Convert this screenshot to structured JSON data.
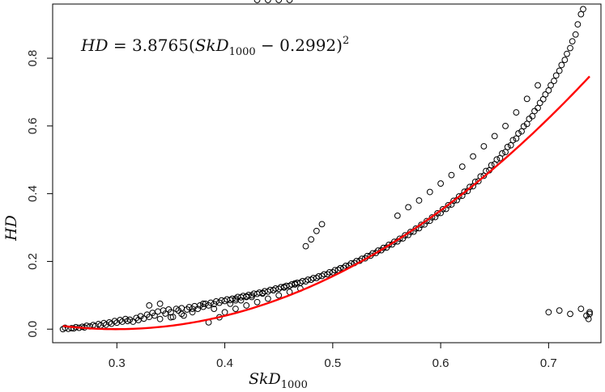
{
  "chart_data": {
    "type": "scatter",
    "title": "",
    "annotation": {
      "lhs": "HD",
      "eq": " = 3.8765(",
      "var": "SkD",
      "sub": "1000",
      "tail": " − 0.2992)",
      "sup": "2"
    },
    "xlabel": {
      "main": "SkD",
      "sub": "1000"
    },
    "ylabel": "HD",
    "xlim": [
      0.2405,
      0.7485
    ],
    "ylim": [
      -0.04,
      0.96
    ],
    "xticks": [
      0.3,
      0.4,
      0.5,
      0.6,
      0.7
    ],
    "xtick_labels": [
      "0.3",
      "0.4",
      "0.5",
      "0.6",
      "0.7"
    ],
    "yticks": [
      0.0,
      0.2,
      0.4,
      0.6,
      0.8
    ],
    "ytick_labels": [
      "0.0",
      "0.2",
      "0.4",
      "0.6",
      "0.8"
    ],
    "grid": false,
    "colors": {
      "points": "#000000",
      "fit": "#ff0000",
      "frame": "#000000"
    },
    "fit": {
      "coef": 3.8765,
      "offset": 0.2992,
      "power": 2,
      "x_range": [
        0.25,
        0.738
      ]
    },
    "points_x": [
      0.25,
      0.252,
      0.255,
      0.258,
      0.26,
      0.262,
      0.265,
      0.268,
      0.27,
      0.272,
      0.275,
      0.278,
      0.28,
      0.283,
      0.285,
      0.288,
      0.29,
      0.293,
      0.295,
      0.298,
      0.3,
      0.303,
      0.305,
      0.308,
      0.31,
      0.312,
      0.315,
      0.318,
      0.32,
      0.322,
      0.325,
      0.328,
      0.33,
      0.333,
      0.335,
      0.338,
      0.34,
      0.343,
      0.345,
      0.348,
      0.35,
      0.352,
      0.355,
      0.357,
      0.36,
      0.362,
      0.365,
      0.367,
      0.37,
      0.372,
      0.375,
      0.377,
      0.38,
      0.382,
      0.385,
      0.387,
      0.39,
      0.392,
      0.395,
      0.397,
      0.4,
      0.402,
      0.405,
      0.407,
      0.41,
      0.412,
      0.415,
      0.417,
      0.42,
      0.422,
      0.425,
      0.427,
      0.43,
      0.432,
      0.435,
      0.437,
      0.44,
      0.442,
      0.445,
      0.447,
      0.45,
      0.452,
      0.455,
      0.457,
      0.46,
      0.462,
      0.465,
      0.467,
      0.47,
      0.472,
      0.475,
      0.477,
      0.48,
      0.482,
      0.485,
      0.487,
      0.49,
      0.492,
      0.495,
      0.497,
      0.5,
      0.502,
      0.505,
      0.507,
      0.51,
      0.512,
      0.515,
      0.517,
      0.52,
      0.522,
      0.525,
      0.527,
      0.53,
      0.532,
      0.535,
      0.537,
      0.54,
      0.542,
      0.545,
      0.547,
      0.55,
      0.552,
      0.555,
      0.557,
      0.56,
      0.562,
      0.565,
      0.567,
      0.57,
      0.572,
      0.575,
      0.577,
      0.58,
      0.582,
      0.585,
      0.587,
      0.59,
      0.592,
      0.595,
      0.597,
      0.6,
      0.602,
      0.605,
      0.607,
      0.61,
      0.612,
      0.615,
      0.617,
      0.62,
      0.622,
      0.625,
      0.627,
      0.63,
      0.632,
      0.635,
      0.637,
      0.64,
      0.642,
      0.645,
      0.647,
      0.65,
      0.652,
      0.655,
      0.657,
      0.66,
      0.662,
      0.665,
      0.667,
      0.67,
      0.672,
      0.675,
      0.677,
      0.68,
      0.682,
      0.685,
      0.687,
      0.69,
      0.692,
      0.695,
      0.697,
      0.7,
      0.702,
      0.705,
      0.707,
      0.71,
      0.712,
      0.715,
      0.717,
      0.72,
      0.722,
      0.725,
      0.727,
      0.73,
      0.732,
      0.735,
      0.737,
      0.738,
      0.738,
      0.385,
      0.39,
      0.395,
      0.4,
      0.405,
      0.41,
      0.415,
      0.42,
      0.425,
      0.43,
      0.435,
      0.44,
      0.445,
      0.45,
      0.455,
      0.46,
      0.465,
      0.47,
      0.475,
      0.48,
      0.485,
      0.49,
      0.56,
      0.57,
      0.58,
      0.59,
      0.6,
      0.61,
      0.62,
      0.63,
      0.64,
      0.65,
      0.66,
      0.67,
      0.68,
      0.69,
      0.7,
      0.71,
      0.72,
      0.73,
      0.33,
      0.34,
      0.35,
      0.36,
      0.37,
      0.38,
      0.41,
      0.42,
      0.43,
      0.44,
      0.45,
      0.46
    ],
    "points_y": [
      0.0,
      0.004,
      0.001,
      0.003,
      0.002,
      0.006,
      0.004,
      0.007,
      0.005,
      0.01,
      0.008,
      0.012,
      0.009,
      0.015,
      0.011,
      0.018,
      0.013,
      0.02,
      0.016,
      0.024,
      0.019,
      0.027,
      0.022,
      0.03,
      0.024,
      0.028,
      0.022,
      0.033,
      0.027,
      0.038,
      0.031,
      0.043,
      0.036,
      0.048,
      0.04,
      0.052,
      0.03,
      0.055,
      0.046,
      0.058,
      0.05,
      0.036,
      0.06,
      0.055,
      0.062,
      0.04,
      0.058,
      0.065,
      0.05,
      0.068,
      0.06,
      0.07,
      0.066,
      0.075,
      0.07,
      0.078,
      0.074,
      0.082,
      0.078,
      0.085,
      0.083,
      0.088,
      0.086,
      0.09,
      0.09,
      0.095,
      0.094,
      0.098,
      0.097,
      0.101,
      0.1,
      0.105,
      0.104,
      0.108,
      0.107,
      0.112,
      0.111,
      0.116,
      0.115,
      0.12,
      0.119,
      0.124,
      0.123,
      0.128,
      0.128,
      0.132,
      0.132,
      0.137,
      0.137,
      0.142,
      0.141,
      0.146,
      0.146,
      0.151,
      0.151,
      0.156,
      0.157,
      0.162,
      0.162,
      0.168,
      0.168,
      0.174,
      0.175,
      0.18,
      0.181,
      0.187,
      0.188,
      0.194,
      0.195,
      0.201,
      0.202,
      0.208,
      0.209,
      0.216,
      0.217,
      0.224,
      0.225,
      0.232,
      0.233,
      0.24,
      0.241,
      0.249,
      0.25,
      0.258,
      0.259,
      0.267,
      0.268,
      0.277,
      0.278,
      0.287,
      0.288,
      0.297,
      0.298,
      0.308,
      0.309,
      0.319,
      0.32,
      0.33,
      0.331,
      0.342,
      0.343,
      0.354,
      0.355,
      0.366,
      0.368,
      0.379,
      0.381,
      0.392,
      0.394,
      0.406,
      0.408,
      0.42,
      0.422,
      0.435,
      0.437,
      0.451,
      0.453,
      0.467,
      0.469,
      0.484,
      0.487,
      0.501,
      0.505,
      0.519,
      0.523,
      0.538,
      0.543,
      0.558,
      0.563,
      0.578,
      0.584,
      0.599,
      0.606,
      0.621,
      0.629,
      0.644,
      0.653,
      0.668,
      0.679,
      0.693,
      0.705,
      0.72,
      0.733,
      0.749,
      0.763,
      0.78,
      0.795,
      0.813,
      0.83,
      0.85,
      0.87,
      0.9,
      0.93,
      0.945,
      0.04,
      0.03,
      0.05,
      0.045,
      0.02,
      0.06,
      0.035,
      0.05,
      0.075,
      0.06,
      0.085,
      0.07,
      0.095,
      0.08,
      0.105,
      0.09,
      0.115,
      0.1,
      0.125,
      0.11,
      0.135,
      0.12,
      0.245,
      0.265,
      0.29,
      0.31,
      0.335,
      0.36,
      0.38,
      0.405,
      0.43,
      0.455,
      0.48,
      0.51,
      0.54,
      0.57,
      0.6,
      0.64,
      0.68,
      0.72,
      0.05,
      0.055,
      0.045,
      0.06,
      0.07,
      0.075,
      0.035,
      0.045,
      0.06,
      0.075,
      0.085,
      0.095
    ]
  }
}
